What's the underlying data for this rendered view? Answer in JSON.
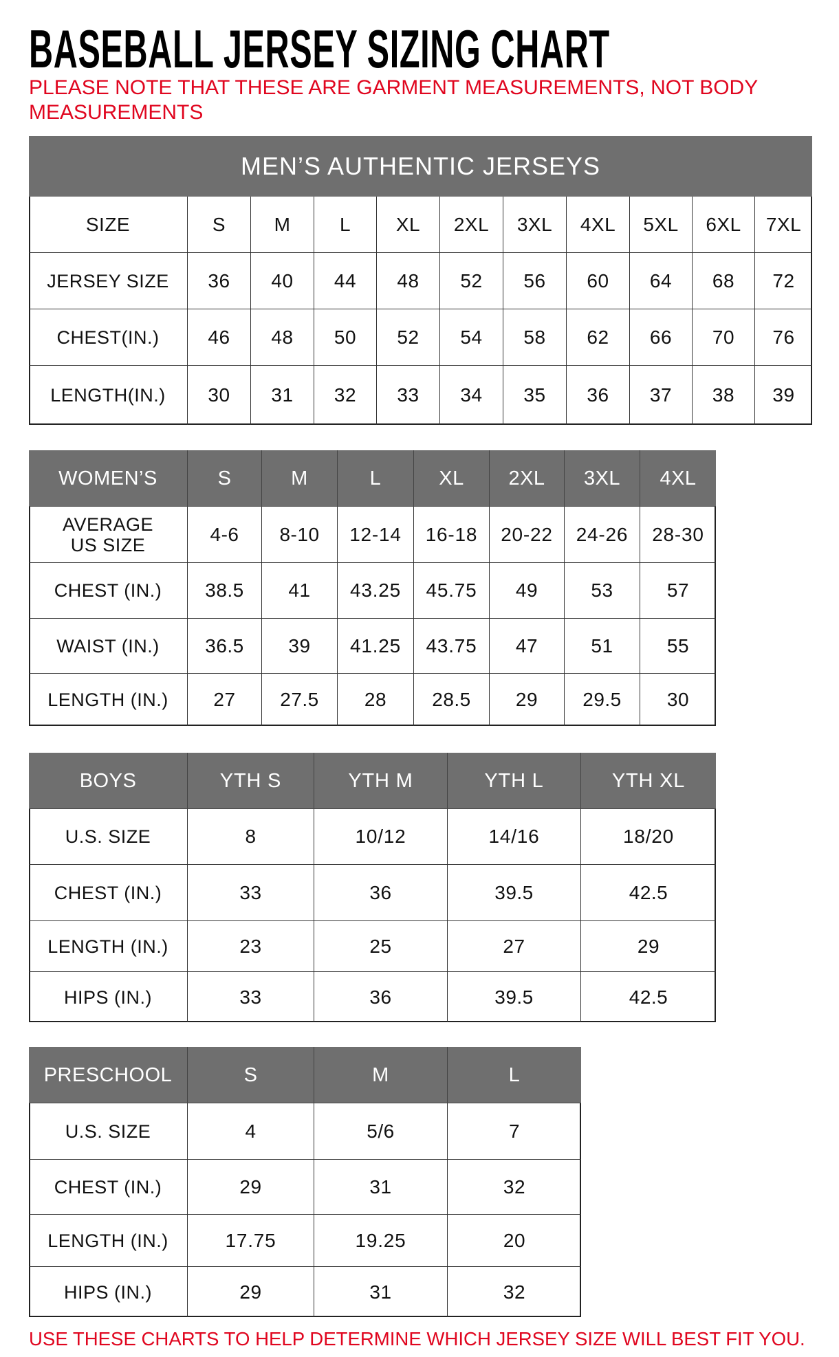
{
  "title": "BASEBALL JERSEY SIZING CHART",
  "note": "PLEASE NOTE THAT THESE ARE GARMENT MEASUREMENTS, NOT BODY MEASUREMENTS",
  "footer": "USE THESE CHARTS TO HELP DETERMINE WHICH JERSEY SIZE WILL BEST FIT YOU.",
  "colors": {
    "header_gray": "#6f6f6f",
    "note_red": "#e0061f"
  },
  "tables": [
    {
      "name": "mens",
      "caption": "MEN’S AUTHENTIC JERSEYS",
      "header": [
        "SIZE",
        "S",
        "M",
        "L",
        "XL",
        "2XL",
        "3XL",
        "4XL",
        "5XL",
        "6XL",
        "7XL"
      ],
      "header_style": "plain",
      "rows": [
        [
          "JERSEY SIZE",
          "36",
          "40",
          "44",
          "48",
          "52",
          "56",
          "60",
          "64",
          "68",
          "72"
        ],
        [
          "CHEST(IN.)",
          "46",
          "48",
          "50",
          "52",
          "54",
          "58",
          "62",
          "66",
          "70",
          "76"
        ],
        [
          "LENGTH(IN.)",
          "30",
          "31",
          "32",
          "33",
          "34",
          "35",
          "36",
          "37",
          "38",
          "39"
        ]
      ]
    },
    {
      "name": "womens",
      "header": [
        "WOMEN’S",
        "S",
        "M",
        "L",
        "XL",
        "2XL",
        "3XL",
        "4XL"
      ],
      "header_style": "gray",
      "rows": [
        [
          "AVERAGE US SIZE",
          "4-6",
          "8-10",
          "12-14",
          "16-18",
          "20-22",
          "24-26",
          "28-30"
        ],
        [
          "CHEST (IN.)",
          "38.5",
          "41",
          "43.25",
          "45.75",
          "49",
          "53",
          "57"
        ],
        [
          "WAIST (IN.)",
          "36.5",
          "39",
          "41.25",
          "43.75",
          "47",
          "51",
          "55"
        ],
        [
          "LENGTH (IN.)",
          "27",
          "27.5",
          "28",
          "28.5",
          "29",
          "29.5",
          "30"
        ]
      ]
    },
    {
      "name": "boys",
      "header": [
        "BOYS",
        "YTH S",
        "YTH M",
        "YTH L",
        "YTH XL"
      ],
      "header_style": "gray",
      "rows": [
        [
          "U.S. SIZE",
          "8",
          "10/12",
          "14/16",
          "18/20"
        ],
        [
          "CHEST (IN.)",
          "33",
          "36",
          "39.5",
          "42.5"
        ],
        [
          "LENGTH (IN.)",
          "23",
          "25",
          "27",
          "29"
        ],
        [
          "HIPS (IN.)",
          "33",
          "36",
          "39.5",
          "42.5"
        ]
      ]
    },
    {
      "name": "preschool",
      "header": [
        "PRESCHOOL",
        "S",
        "M",
        "L"
      ],
      "header_style": "gray",
      "rows": [
        [
          "U.S. SIZE",
          "4",
          "5/6",
          "7"
        ],
        [
          "CHEST (IN.)",
          "29",
          "31",
          "32"
        ],
        [
          "LENGTH (IN.)",
          "17.75",
          "19.25",
          "20"
        ],
        [
          "HIPS (IN.)",
          "29",
          "31",
          "32"
        ]
      ]
    }
  ]
}
